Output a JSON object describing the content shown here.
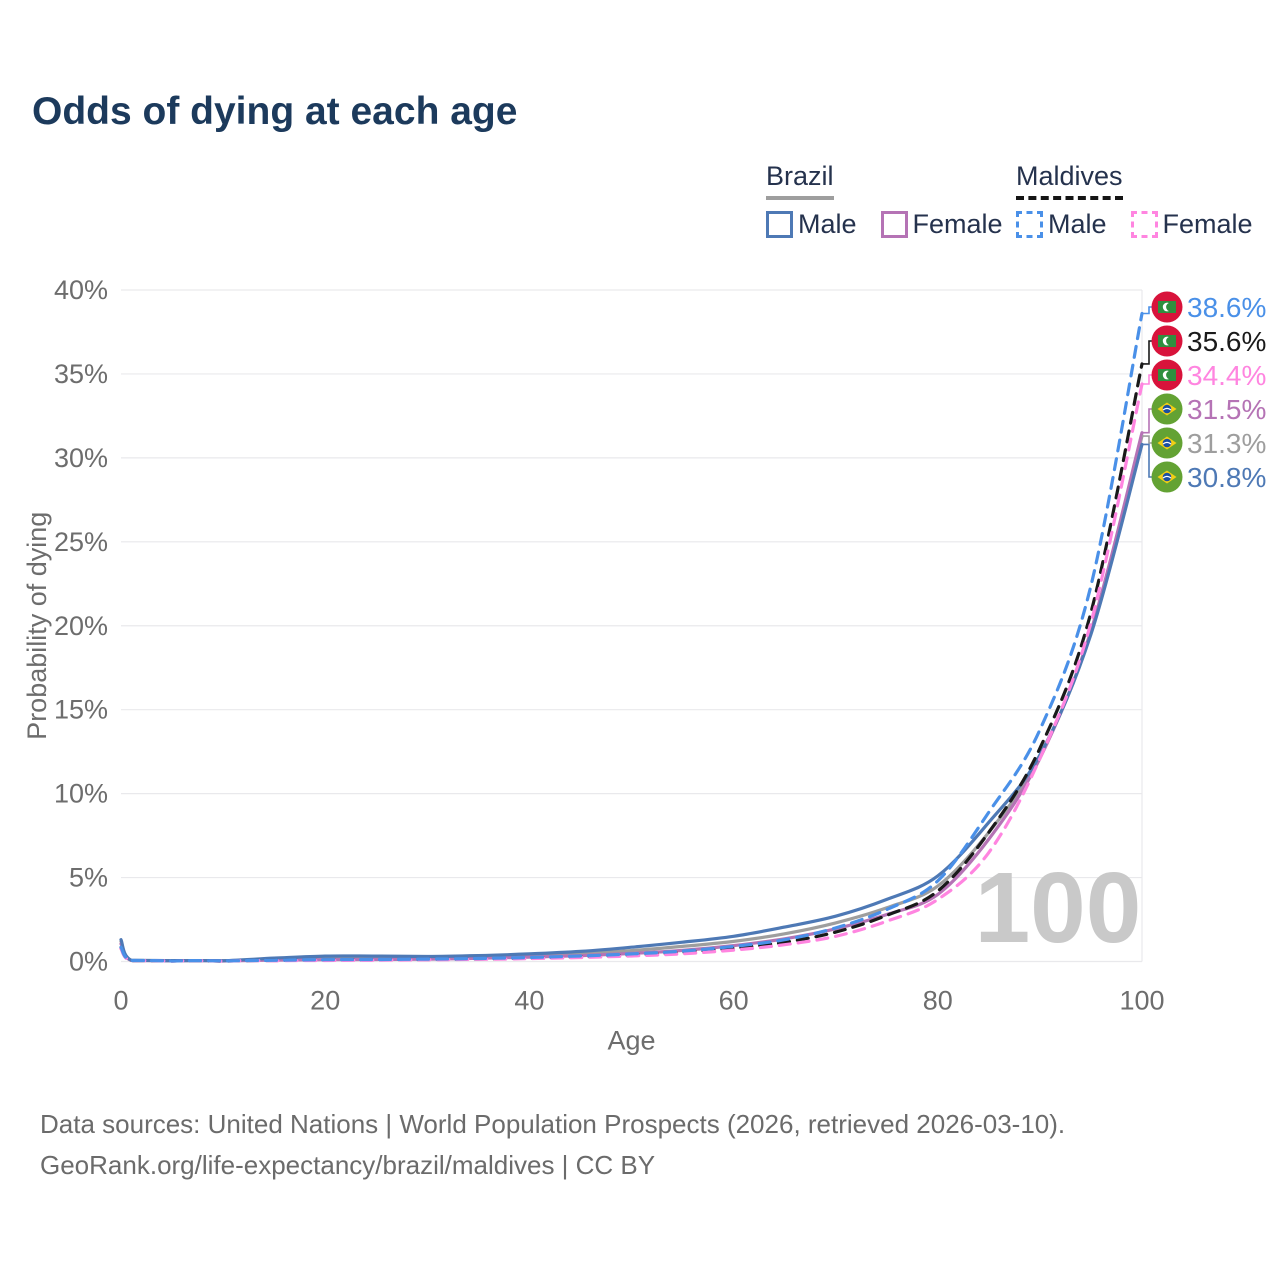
{
  "title": "Odds of dying at each age",
  "watermark": "100",
  "legend": {
    "groups": [
      {
        "name": "Brazil",
        "line_style": "solid",
        "line_color": "#9e9e9e",
        "items": [
          {
            "label": "Male",
            "color": "#4e79b5"
          },
          {
            "label": "Female",
            "color": "#b573b5"
          }
        ]
      },
      {
        "name": "Maldives",
        "line_style": "dashed",
        "line_color": "#151515",
        "items": [
          {
            "label": "Male",
            "color": "#4a90e8"
          },
          {
            "label": "Female",
            "color": "#ff85e0"
          }
        ]
      }
    ]
  },
  "footer": {
    "line1": "Data sources: United Nations | World Population Prospects (2026, retrieved 2026-03-10).",
    "line2": "GeoRank.org/life-expectancy/brazil/maldives | CC BY"
  },
  "chart_data": {
    "type": "line",
    "title": "Odds of dying at each age",
    "xlabel": "Age",
    "ylabel": "Probability of dying",
    "xlim": [
      0,
      100
    ],
    "ylim": [
      0,
      40
    ],
    "x_ticks": [
      0,
      20,
      40,
      60,
      80,
      100
    ],
    "y_ticks": [
      0,
      5,
      10,
      15,
      20,
      25,
      30,
      35,
      40
    ],
    "grid": "horizontal",
    "legend_position": "top-right",
    "ages": [
      0,
      1,
      5,
      10,
      15,
      20,
      25,
      30,
      35,
      40,
      45,
      50,
      55,
      60,
      65,
      70,
      75,
      80,
      85,
      90,
      95,
      100
    ],
    "series": [
      {
        "name": "Brazil Both sexes",
        "country": "brazil",
        "style": "solid",
        "color": "#9e9e9e",
        "end_label": "31.3%",
        "values": [
          1.2,
          0.07,
          0.04,
          0.04,
          0.15,
          0.22,
          0.22,
          0.22,
          0.27,
          0.35,
          0.47,
          0.65,
          0.9,
          1.2,
          1.65,
          2.3,
          3.2,
          4.5,
          7.7,
          12.2,
          19.6,
          31.3
        ]
      },
      {
        "name": "Brazil Female",
        "country": "brazil",
        "style": "solid",
        "color": "#b573b5",
        "end_label": "31.5%",
        "values": [
          1.05,
          0.06,
          0.04,
          0.03,
          0.08,
          0.11,
          0.12,
          0.14,
          0.19,
          0.26,
          0.35,
          0.48,
          0.66,
          0.95,
          1.35,
          1.95,
          2.8,
          4.0,
          7.3,
          12.1,
          19.7,
          31.5
        ]
      },
      {
        "name": "Brazil Male",
        "country": "brazil",
        "style": "solid",
        "color": "#4e79b5",
        "end_label": "30.8%",
        "values": [
          1.3,
          0.08,
          0.05,
          0.05,
          0.2,
          0.32,
          0.32,
          0.3,
          0.35,
          0.45,
          0.6,
          0.85,
          1.15,
          1.5,
          2.05,
          2.7,
          3.7,
          5.1,
          8.3,
          12.3,
          19.5,
          30.8
        ]
      },
      {
        "name": "Maldives Both sexes",
        "country": "maldives",
        "style": "dashed",
        "color": "#1a1a1a",
        "end_label": "35.6%",
        "values": [
          0.8,
          0.05,
          0.03,
          0.02,
          0.06,
          0.09,
          0.1,
          0.12,
          0.15,
          0.2,
          0.28,
          0.39,
          0.55,
          0.8,
          1.15,
          1.75,
          2.75,
          4.2,
          7.7,
          12.7,
          20.8,
          35.6
        ]
      },
      {
        "name": "Maldives Female",
        "country": "maldives",
        "style": "dashed",
        "color": "#ff85e0",
        "end_label": "34.4%",
        "values": [
          0.75,
          0.05,
          0.02,
          0.02,
          0.04,
          0.06,
          0.08,
          0.1,
          0.13,
          0.17,
          0.24,
          0.33,
          0.46,
          0.68,
          1.0,
          1.5,
          2.4,
          3.7,
          6.5,
          12.1,
          20.2,
          34.4
        ]
      },
      {
        "name": "Maldives Male",
        "country": "maldives",
        "style": "dashed",
        "color": "#4a90e8",
        "end_label": "38.6%",
        "values": [
          0.85,
          0.06,
          0.03,
          0.03,
          0.07,
          0.11,
          0.12,
          0.14,
          0.18,
          0.24,
          0.33,
          0.45,
          0.62,
          0.9,
          1.3,
          2.0,
          3.1,
          4.8,
          8.9,
          13.8,
          22.4,
          38.6
        ]
      }
    ]
  }
}
